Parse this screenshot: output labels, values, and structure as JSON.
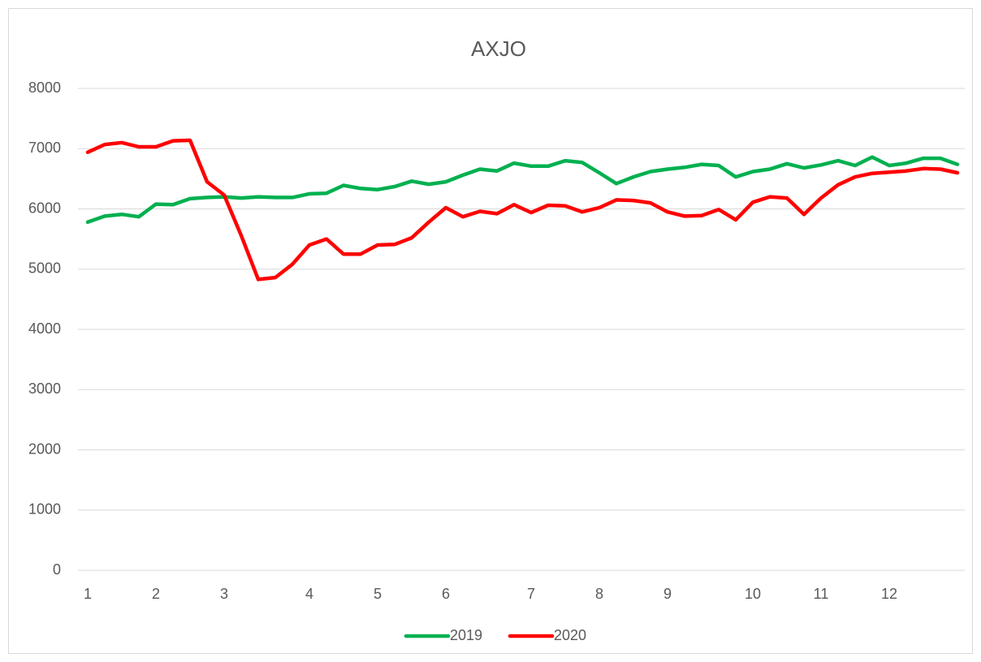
{
  "chart_data": {
    "type": "line",
    "title": "AXJO",
    "categories": [
      "1",
      null,
      null,
      null,
      "2",
      null,
      null,
      null,
      "3",
      null,
      null,
      null,
      null,
      "4",
      null,
      null,
      null,
      "5",
      null,
      null,
      null,
      "6",
      null,
      null,
      null,
      null,
      "7",
      null,
      null,
      null,
      "8",
      null,
      null,
      null,
      "9",
      null,
      null,
      null,
      null,
      "10",
      null,
      null,
      null,
      "11",
      null,
      null,
      null,
      "12",
      null,
      null,
      null,
      null
    ],
    "series": [
      {
        "name": "2019",
        "color": "#00b050",
        "values": [
          5780,
          5880,
          5910,
          5870,
          6080,
          6070,
          6170,
          6190,
          6200,
          6180,
          6200,
          6190,
          6190,
          6250,
          6260,
          6390,
          6340,
          6320,
          6370,
          6460,
          6410,
          6450,
          6560,
          6660,
          6630,
          6760,
          6710,
          6710,
          6800,
          6770,
          6600,
          6420,
          6530,
          6620,
          6660,
          6690,
          6740,
          6720,
          6530,
          6620,
          6660,
          6750,
          6680,
          6730,
          6800,
          6720,
          6860,
          6720,
          6760,
          6840,
          6840,
          6740
        ]
      },
      {
        "name": "2020",
        "color": "#ff0000",
        "values": [
          6940,
          7070,
          7100,
          7030,
          7030,
          7130,
          7140,
          6450,
          6230,
          5560,
          4830,
          4860,
          5080,
          5400,
          5500,
          5250,
          5250,
          5400,
          5410,
          5520,
          5780,
          6020,
          5870,
          5960,
          5920,
          6070,
          5940,
          6060,
          6050,
          5950,
          6020,
          6150,
          6140,
          6100,
          5950,
          5880,
          5890,
          5990,
          5820,
          6110,
          6200,
          6180,
          5910,
          6180,
          6400,
          6530,
          6590,
          6610,
          6630,
          6670,
          6660,
          6600
        ]
      }
    ],
    "ylim": [
      0,
      8000
    ],
    "yticks": [
      0,
      1000,
      2000,
      3000,
      4000,
      5000,
      6000,
      7000,
      8000
    ],
    "grid": true,
    "legend": "bottom"
  }
}
